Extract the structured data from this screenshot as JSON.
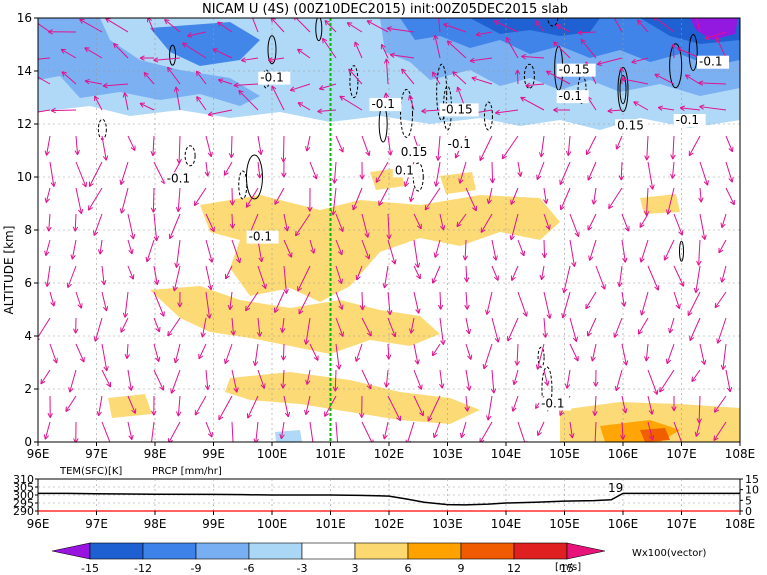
{
  "title": "NICAM U (4S) (00Z10DEC2015) init:00Z05DEC2015 slab",
  "colors": {
    "arrow": "#e0138f",
    "temp_line": "#000000",
    "prcp_line": "#ff0000",
    "green_line": "#00bb00",
    "grid": "#9a9a9a"
  },
  "chart_data": [
    {
      "type": "heatmap",
      "title": "NICAM U (4S) (00Z10DEC2015) init:00Z05DEC2015 slab",
      "xlabel": "",
      "ylabel": "ALTITUDE [km]",
      "x_ticks": [
        "96E",
        "97E",
        "98E",
        "99E",
        "100E",
        "101E",
        "102E",
        "103E",
        "104E",
        "105E",
        "106E",
        "107E",
        "108E"
      ],
      "y_ticks": [
        "0",
        "2",
        "4",
        "6",
        "8",
        "10",
        "12",
        "14",
        "16"
      ],
      "xlim": [
        96,
        108
      ],
      "ylim": [
        0,
        16
      ],
      "grid": true,
      "marker_longitude": 101,
      "contour_labels": [
        {
          "text": "-0.1",
          "lon": 99.8,
          "alt": 13.6
        },
        {
          "text": "-0.1",
          "lon": 101.7,
          "alt": 12.6
        },
        {
          "text": "-0.1",
          "lon": 98.2,
          "alt": 9.8
        },
        {
          "text": "-0.1",
          "lon": 99.6,
          "alt": 7.6
        },
        {
          "text": "0.15",
          "lon": 102.2,
          "alt": 10.8
        },
        {
          "text": "0.1",
          "lon": 102.1,
          "alt": 10.1
        },
        {
          "text": "-0.15",
          "lon": 102.9,
          "alt": 12.4
        },
        {
          "text": "-0.1",
          "lon": 103.0,
          "alt": 11.1
        },
        {
          "text": "-0.15",
          "lon": 104.9,
          "alt": 13.9
        },
        {
          "text": "-0.1",
          "lon": 104.9,
          "alt": 12.9
        },
        {
          "text": "0.15",
          "lon": 105.9,
          "alt": 11.8
        },
        {
          "text": "-0.1",
          "lon": 106.9,
          "alt": 12.0
        },
        {
          "text": "-0.1",
          "lon": 107.3,
          "alt": 14.2
        },
        {
          "text": "-0.1",
          "lon": 104.6,
          "alt": 1.3
        }
      ],
      "wind_vectors_label": "Wx100(vector)",
      "colorbar": {
        "ticks": [
          "-15",
          "-12",
          "-9",
          "-6",
          "-3",
          "3",
          "6",
          "9",
          "12",
          "15"
        ],
        "unit": "[m/s]",
        "colors": [
          "#9a14e0",
          "#1e5fd2",
          "#3d82e8",
          "#78aef2",
          "#abd7f6",
          "#ffffff",
          "#fcd970",
          "#ffa200",
          "#f05a00",
          "#e02020",
          "#c0002a",
          "#e8137a"
        ]
      }
    },
    {
      "type": "line",
      "series": [
        {
          "name": "TEM(SFC)[K]",
          "x": [
            96,
            96.5,
            97,
            98,
            99,
            99.5,
            100,
            101,
            101.5,
            102,
            102.3,
            102.6,
            103,
            103.3,
            103.7,
            104,
            104.5,
            105,
            105.5,
            105.8,
            106,
            108
          ],
          "y": [
            301,
            301,
            300.8,
            300.5,
            300.4,
            300.2,
            300,
            300,
            299.8,
            299.3,
            297.5,
            295.5,
            294,
            293.8,
            294.3,
            295,
            295.5,
            296.2,
            296.5,
            297,
            301,
            301
          ]
        },
        {
          "name": "PRCP [mm/hr]",
          "x": [
            96,
            108
          ],
          "y": [
            0,
            0
          ]
        }
      ],
      "x_ticks": [
        "96E",
        "97E",
        "98E",
        "99E",
        "100E",
        "101E",
        "102E",
        "103E",
        "104E",
        "105E",
        "106E",
        "107E",
        "108E"
      ],
      "y_left_ticks": [
        "290",
        "295",
        "300",
        "305",
        "310"
      ],
      "y_right_ticks": [
        "0",
        "5",
        "10",
        "15"
      ],
      "annotation": "19",
      "xlim": [
        96,
        108
      ],
      "ylim_left": [
        290,
        310
      ],
      "ylim_right": [
        0,
        15
      ],
      "grid": true
    }
  ]
}
